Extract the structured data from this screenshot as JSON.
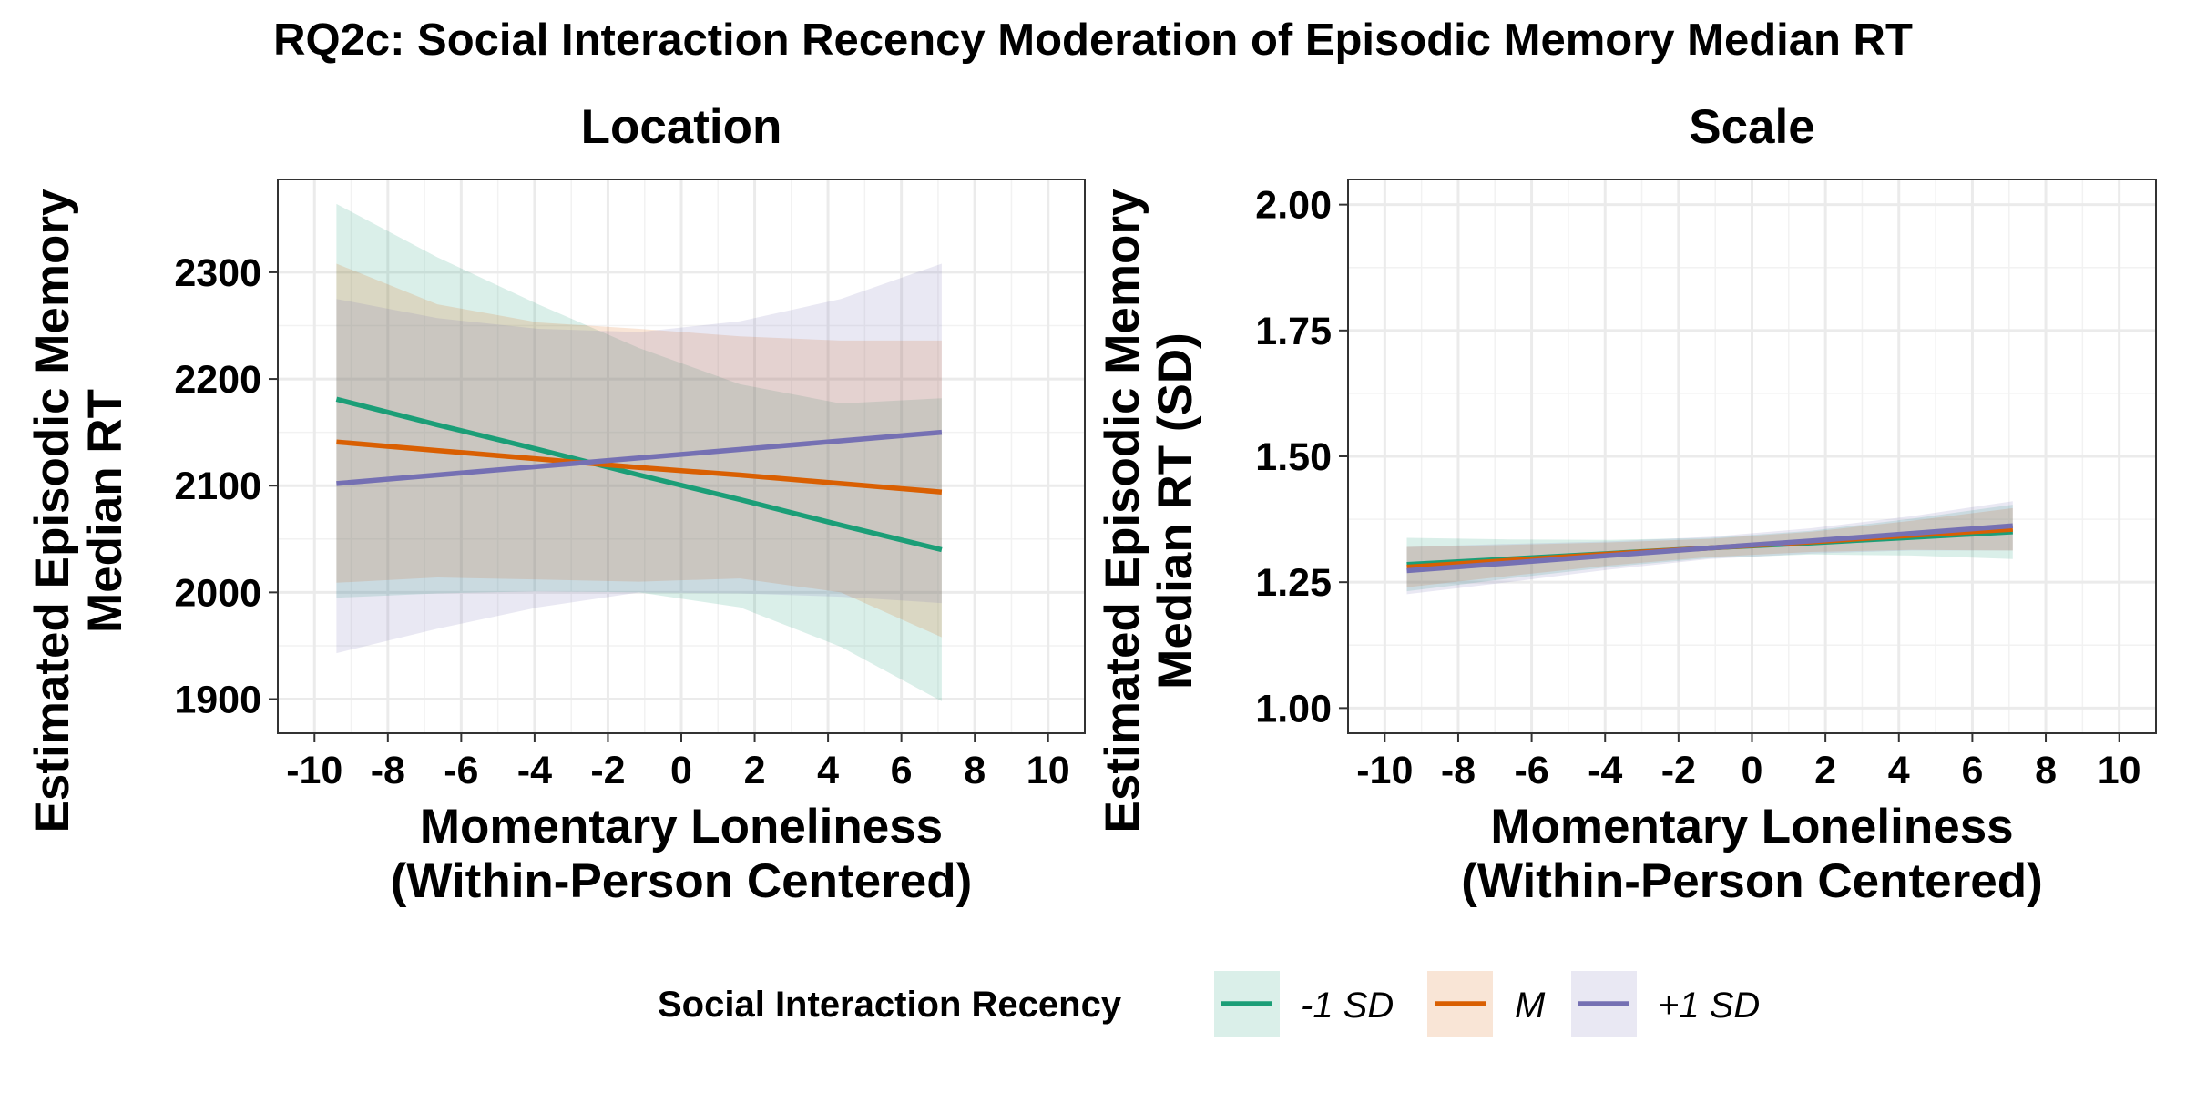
{
  "title": "RQ2c: Social Interaction Recency Moderation of Episodic Memory Median RT",
  "legend": {
    "title": "Social Interaction Recency",
    "position": "bottom",
    "entries": [
      {
        "label": "-1 SD",
        "color": "#1b9e77"
      },
      {
        "label": "M",
        "color": "#d95f02"
      },
      {
        "label": "+1 SD",
        "color": "#7570b3"
      }
    ]
  },
  "chart_data": [
    {
      "type": "line",
      "title": "Location",
      "xlabel": "Momentary Loneliness\n(Within-Person Centered)",
      "ylabel": "Estimated Episodic Memory\nMedian RT",
      "xlim": [
        -11.0,
        11.0
      ],
      "ylim": [
        1868,
        2387
      ],
      "xticks": [
        -10,
        -8,
        -6,
        -4,
        -2,
        0,
        2,
        4,
        6,
        8,
        10
      ],
      "yticks": [
        1900,
        2000,
        2100,
        2200,
        2300
      ],
      "grid": true,
      "x": [
        -9.4,
        -6.65,
        -3.9,
        -1.15,
        1.6,
        4.35,
        7.1
      ],
      "series": [
        {
          "name": "-1 SD",
          "color": "#1b9e77",
          "values": [
            2181,
            2157,
            2134,
            2110,
            2087,
            2063,
            2040
          ],
          "lower": [
            1995,
            1999,
            2001,
            2000,
            1986,
            1949,
            1898
          ],
          "upper": [
            2364,
            2314,
            2270,
            2229,
            2195,
            2177,
            2182
          ]
        },
        {
          "name": "M",
          "color": "#d95f02",
          "values": [
            2141,
            2133,
            2125,
            2117,
            2110,
            2102,
            2094
          ],
          "lower": [
            2009,
            2014,
            2012,
            2010,
            2013,
            2000,
            1958
          ],
          "upper": [
            2308,
            2270,
            2253,
            2247,
            2240,
            2236,
            2236
          ]
        },
        {
          "name": "+1 SD",
          "color": "#7570b3",
          "values": [
            2102,
            2110,
            2118,
            2126,
            2134,
            2142,
            2150
          ],
          "lower": [
            1943,
            1966,
            1986,
            2000,
            1999,
            1996,
            1990
          ],
          "upper": [
            2275,
            2257,
            2247,
            2244,
            2254,
            2275,
            2308
          ]
        }
      ]
    },
    {
      "type": "line",
      "title": "Scale",
      "xlabel": "Momentary Loneliness\n(Within-Person Centered)",
      "ylabel": "Estimated Episodic Memory\nMedian RT (SD)",
      "xlim": [
        -11.0,
        11.0
      ],
      "ylim": [
        0.95,
        2.05
      ],
      "xticks": [
        -10,
        -8,
        -6,
        -4,
        -2,
        0,
        2,
        4,
        6,
        8,
        10
      ],
      "yticks": [
        1.0,
        1.25,
        1.5,
        1.75,
        2.0
      ],
      "grid": true,
      "x": [
        -9.4,
        -6.65,
        -3.9,
        -1.15,
        1.6,
        4.35,
        7.1
      ],
      "series": [
        {
          "name": "-1 SD",
          "color": "#1b9e77",
          "values": [
            1.285,
            1.296,
            1.307,
            1.318,
            1.328,
            1.339,
            1.35
          ],
          "lower": [
            1.232,
            1.257,
            1.28,
            1.298,
            1.305,
            1.303,
            1.296
          ],
          "upper": [
            1.338,
            1.335,
            1.334,
            1.338,
            1.352,
            1.376,
            1.404
          ]
        },
        {
          "name": "M",
          "color": "#d95f02",
          "values": [
            1.28,
            1.293,
            1.306,
            1.318,
            1.33,
            1.343,
            1.355
          ],
          "lower": [
            1.24,
            1.262,
            1.283,
            1.3,
            1.31,
            1.314,
            1.313
          ],
          "upper": [
            1.32,
            1.324,
            1.329,
            1.336,
            1.35,
            1.372,
            1.397
          ]
        },
        {
          "name": "+1 SD",
          "color": "#7570b3",
          "values": [
            1.273,
            1.288,
            1.303,
            1.318,
            1.332,
            1.347,
            1.362
          ],
          "lower": [
            1.226,
            1.25,
            1.275,
            1.296,
            1.307,
            1.313,
            1.313
          ],
          "upper": [
            1.32,
            1.326,
            1.331,
            1.34,
            1.357,
            1.381,
            1.411
          ]
        }
      ]
    }
  ]
}
